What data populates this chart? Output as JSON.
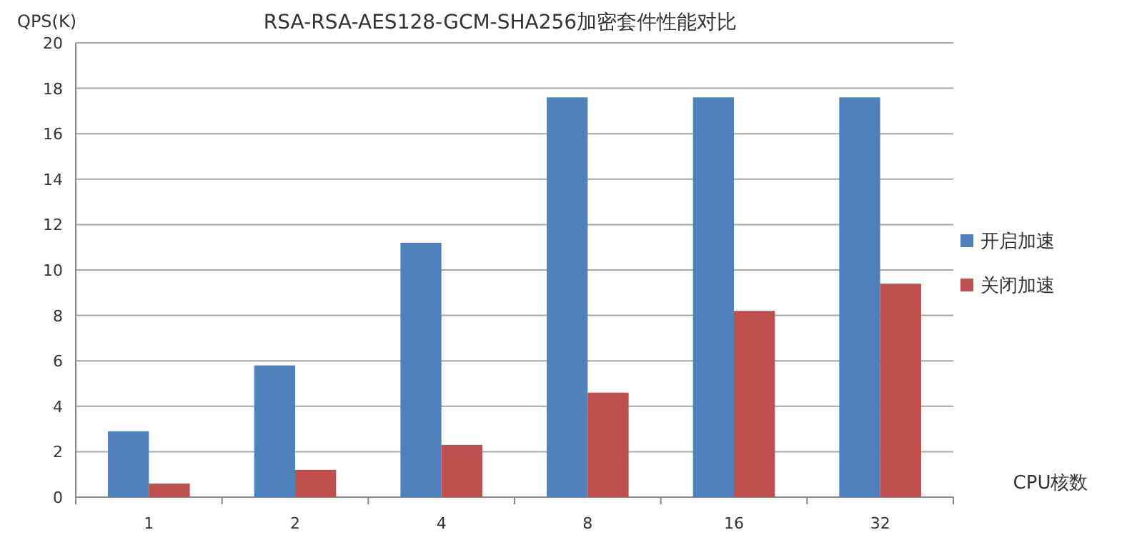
{
  "chart_data": {
    "type": "bar",
    "title": "RSA-RSA-AES128-GCM-SHA256加密套件性能对比",
    "xlabel": "CPU核数",
    "ylabel": "QPS(K)",
    "categories": [
      "1",
      "2",
      "4",
      "8",
      "16",
      "32"
    ],
    "series": [
      {
        "name": "开启加速",
        "color": "#4f81bd",
        "values": [
          2.9,
          5.8,
          11.2,
          17.6,
          17.6,
          17.6
        ]
      },
      {
        "name": "关闭加速",
        "color": "#c0504d",
        "values": [
          0.6,
          1.2,
          2.3,
          4.6,
          8.2,
          9.4
        ]
      }
    ],
    "ylim": [
      0,
      20
    ],
    "yticks": [
      0,
      2,
      4,
      6,
      8,
      10,
      12,
      14,
      16,
      18,
      20
    ],
    "grid": "y",
    "legend": "right"
  }
}
